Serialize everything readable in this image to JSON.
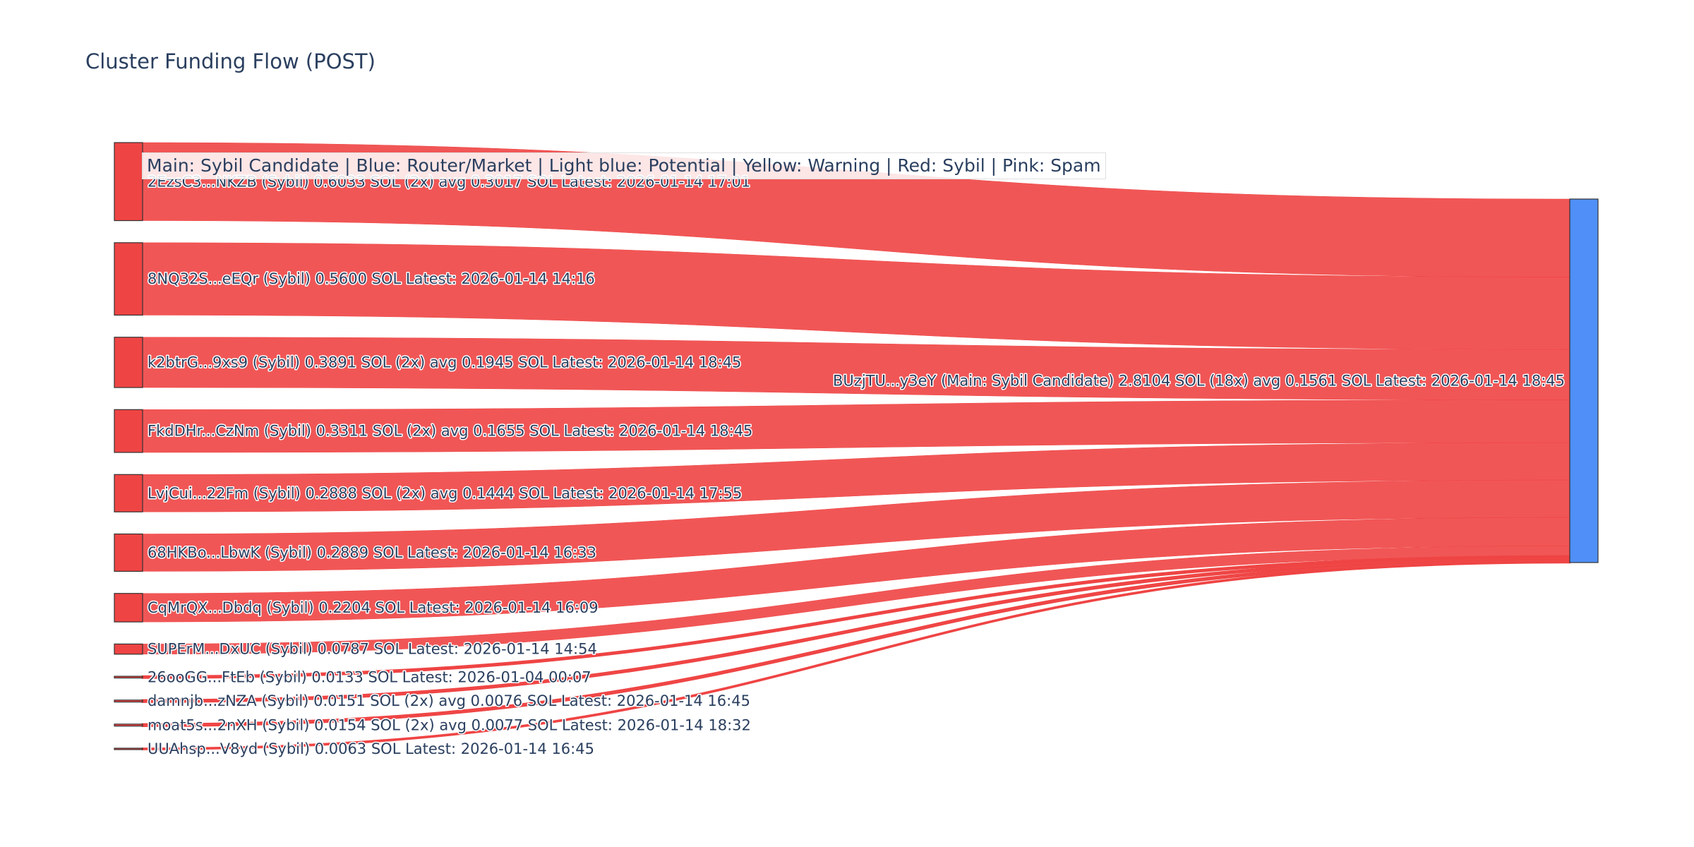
{
  "title": "Cluster Funding Flow (POST)",
  "legend_text": "Main: Sybil Candidate  |  Blue: Router/Market | Light blue: Potential | Yellow: Warning | Red: Sybil | Pink: Spam",
  "colors": {
    "link": "#ef4444",
    "link_opacity": 0.9,
    "source_node": "#ef4444",
    "target_node": "#4f8ff7",
    "node_border": "#333333"
  },
  "chart_data": {
    "type": "sankey",
    "title": "Cluster Funding Flow (POST)",
    "target": {
      "id": "BUzjTU...y3eY",
      "label": "BUzjTU...y3eY (Main: Sybil Candidate) 2.8104 SOL (18x) avg 0.1561 SOL Latest: 2026-01-14 18:45",
      "value": 2.8104
    },
    "sources": [
      {
        "id": "2EzsC3...NKZB",
        "label": "2EzsC3...NKZB (Sybil) 0.6033 SOL (2x) avg 0.3017 SOL Latest: 2026-01-14 17:01",
        "value": 0.6033
      },
      {
        "id": "8NQ32S...eEQr",
        "label": "8NQ32S...eEQr (Sybil) 0.5600 SOL Latest: 2026-01-14 14:16",
        "value": 0.56
      },
      {
        "id": "k2btrG...9xs9",
        "label": "k2btrG...9xs9 (Sybil) 0.3891 SOL (2x) avg 0.1945 SOL Latest: 2026-01-14 18:45",
        "value": 0.3891
      },
      {
        "id": "FkdDHr...CzNm",
        "label": "FkdDHr...CzNm (Sybil) 0.3311 SOL (2x) avg 0.1655 SOL Latest: 2026-01-14 18:45",
        "value": 0.3311
      },
      {
        "id": "LvjCui...22Fm",
        "label": "LvjCui...22Fm (Sybil) 0.2888 SOL (2x) avg 0.1444 SOL Latest: 2026-01-14 17:55",
        "value": 0.2888
      },
      {
        "id": "68HKBo...LbwK",
        "label": "68HKBo...LbwK (Sybil) 0.2889 SOL Latest: 2026-01-14 16:33",
        "value": 0.2889
      },
      {
        "id": "CqMrQX...Dbdq",
        "label": "CqMrQX...Dbdq (Sybil) 0.2204 SOL Latest: 2026-01-14 16:09",
        "value": 0.2204
      },
      {
        "id": "SUPErM...DxUC",
        "label": "SUPErM...DxUC (Sybil) 0.0787 SOL Latest: 2026-01-14 14:54",
        "value": 0.0787
      },
      {
        "id": "26ooGG...FtEb",
        "label": "26ooGG...FtEb (Sybil) 0.0133 SOL Latest: 2026-01-04 00:07",
        "value": 0.0133
      },
      {
        "id": "damnjb...zNZA",
        "label": "damnjb...zNZA (Sybil) 0.0151 SOL (2x) avg 0.0076 SOL Latest: 2026-01-14 16:45",
        "value": 0.0151
      },
      {
        "id": "moat5s...2nXH",
        "label": "moat5s...2nXH (Sybil) 0.0154 SOL (2x) avg 0.0077 SOL Latest: 2026-01-14 18:32",
        "value": 0.0154
      },
      {
        "id": "UUAhsp...V8yd",
        "label": "UUAhsp...V8yd (Sybil) 0.0063 SOL Latest: 2026-01-14 16:45",
        "value": 0.0063
      }
    ]
  }
}
